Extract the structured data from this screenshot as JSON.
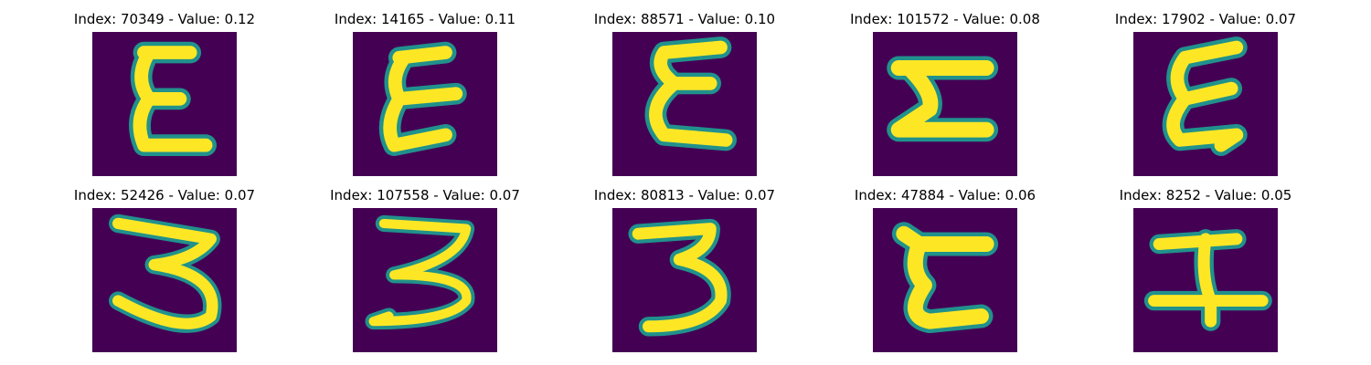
{
  "panels": [
    {
      "title": "Index: 70349 - Value: 0.12",
      "glyph": "E1",
      "colors": {
        "background": "#440154",
        "stroke": "#fde725",
        "edge": "#21918c"
      }
    },
    {
      "title": "Index: 14165 - Value: 0.11",
      "glyph": "E2"
    },
    {
      "title": "Index: 88571 - Value: 0.10",
      "glyph": "E3"
    },
    {
      "title": "Index: 101572 - Value: 0.08",
      "glyph": "S1"
    },
    {
      "title": "Index: 17902 - Value: 0.07",
      "glyph": "E4"
    },
    {
      "title": "Index: 52426 - Value: 0.07",
      "glyph": "T1"
    },
    {
      "title": "Index: 107558 - Value: 0.07",
      "glyph": "T2"
    },
    {
      "title": "Index: 80813 - Value: 0.07",
      "glyph": "T3"
    },
    {
      "title": "Index: 47884 - Value: 0.06",
      "glyph": "C1"
    },
    {
      "title": "Index: 8252 - Value: 0.05",
      "glyph": "I1"
    }
  ],
  "palette": {
    "background": "#440154",
    "stroke": "#fde725",
    "edge": "#21918c"
  }
}
